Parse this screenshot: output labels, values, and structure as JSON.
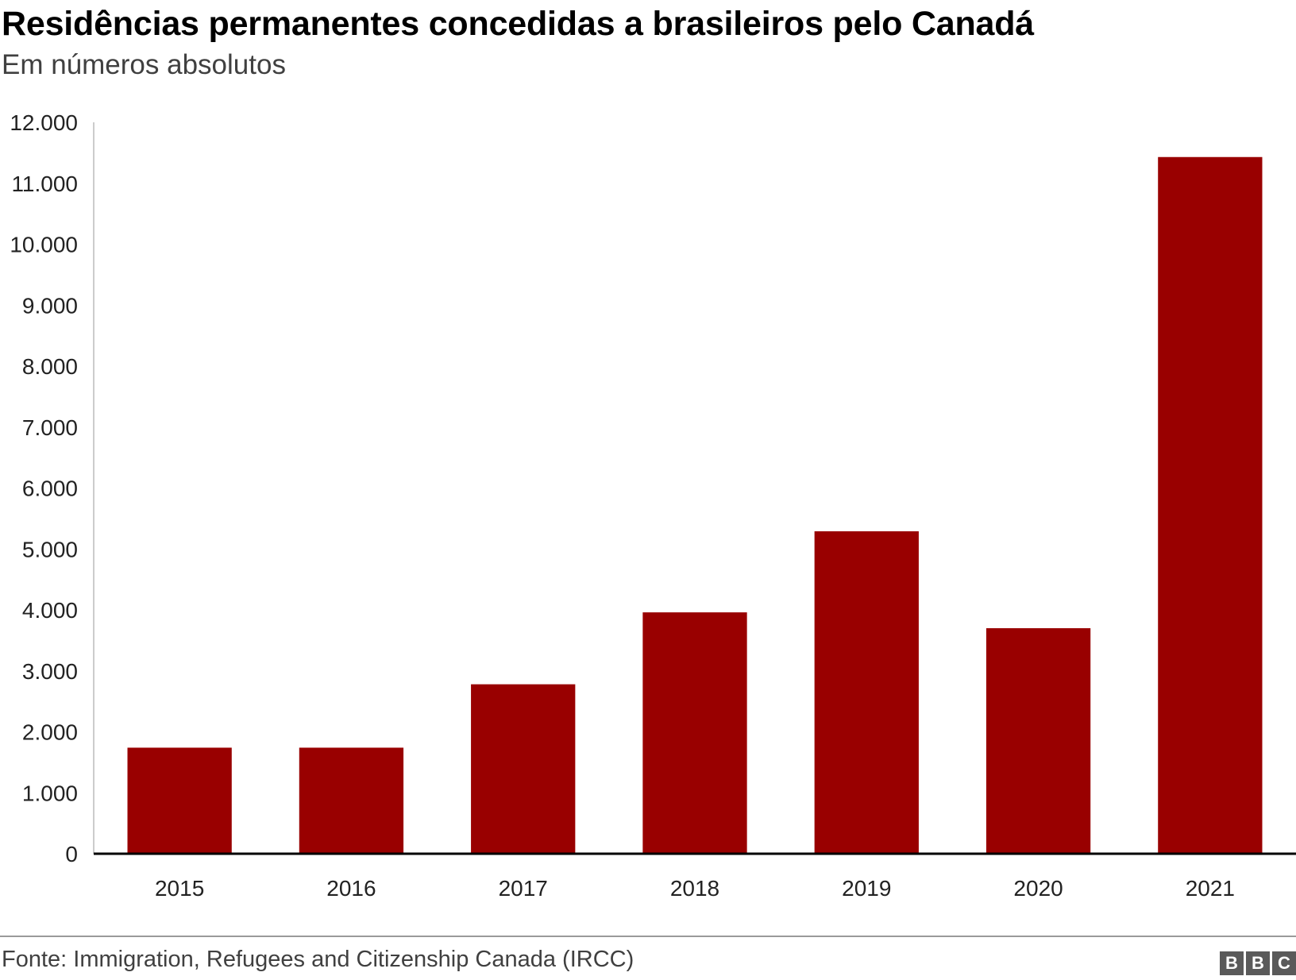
{
  "title": "Residências permanentes concedidas a brasileiros pelo Canadá",
  "subtitle": "Em números absolutos",
  "source": "Fonte: Immigration, Refugees and Citizenship Canada (IRCC)",
  "logo": [
    "B",
    "B",
    "C"
  ],
  "colors": {
    "bar": "#990000",
    "axis": "#000000",
    "y_axis_line": "#cccccc",
    "footer_rule": "#9a9a9a",
    "logo": "#5a5a5a"
  },
  "chart_data": {
    "type": "bar",
    "categories": [
      "2015",
      "2016",
      "2017",
      "2018",
      "2019",
      "2020",
      "2021"
    ],
    "values": [
      1740,
      1740,
      2780,
      3960,
      5290,
      3700,
      11430
    ],
    "ylim": [
      0,
      12000
    ],
    "yticks": [
      0,
      1000,
      2000,
      3000,
      4000,
      5000,
      6000,
      7000,
      8000,
      9000,
      10000,
      11000,
      12000
    ],
    "ytick_labels": [
      "0",
      "1.000",
      "2.000",
      "3.000",
      "4.000",
      "5.000",
      "6.000",
      "7.000",
      "8.000",
      "9.000",
      "10.000",
      "11.000",
      "12.000"
    ],
    "xlabel": "",
    "ylabel": "",
    "grid": false,
    "legend": "none"
  }
}
